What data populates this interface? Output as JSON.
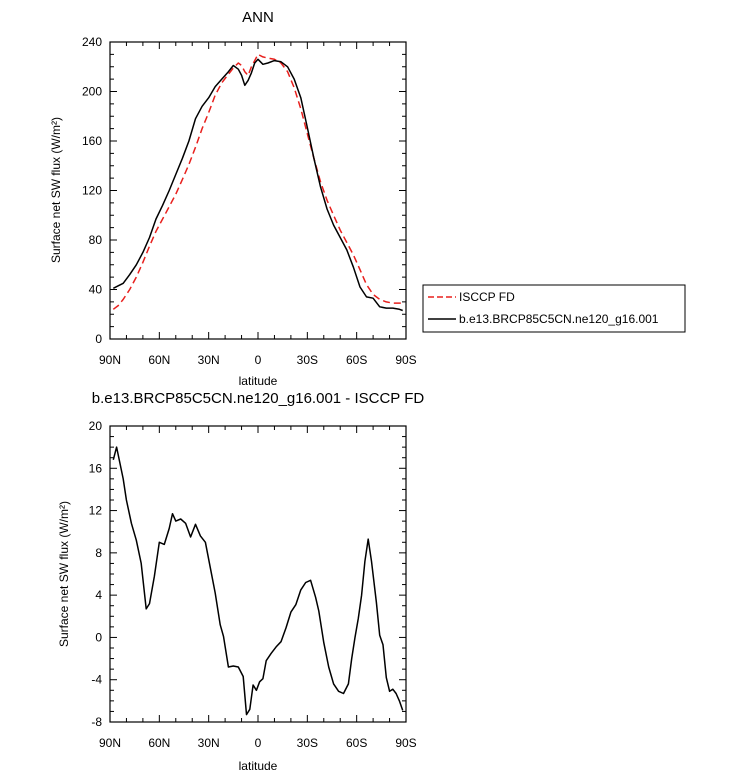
{
  "chart_data": [
    {
      "type": "line",
      "title": "ANN",
      "xlabel": "latitude",
      "ylabel": "Surface net SW flux (W/m²)",
      "xlim": [
        -90,
        90
      ],
      "ylim": [
        0,
        240
      ],
      "x_ticks": [
        -90,
        -60,
        -30,
        0,
        30,
        60,
        90
      ],
      "x_tick_labels": [
        "90N",
        "60N",
        "30N",
        "0",
        "30S",
        "60S",
        "90S"
      ],
      "y_ticks": [
        0,
        40,
        80,
        120,
        160,
        200,
        240
      ],
      "y_tick_labels": [
        "0",
        "40",
        "80",
        "120",
        "160",
        "200",
        "240"
      ],
      "legend_position": "right",
      "series": [
        {
          "name": "ISCCP FD",
          "color": "#e8201d",
          "dash": "dashed",
          "x": [
            -88,
            -85,
            -82,
            -78,
            -74,
            -70,
            -66,
            -62,
            -58,
            -54,
            -50,
            -46,
            -42,
            -38,
            -34,
            -30,
            -26,
            -22,
            -18,
            -15,
            -12,
            -10,
            -8,
            -6,
            -4,
            -2,
            0,
            3,
            6,
            10,
            14,
            18,
            22,
            26,
            30,
            34,
            38,
            42,
            46,
            50,
            54,
            58,
            62,
            66,
            70,
            74,
            78,
            82,
            86,
            88
          ],
          "y": [
            24,
            27,
            32,
            40,
            50,
            62,
            75,
            87,
            97,
            107,
            117,
            129,
            141,
            155,
            170,
            183,
            197,
            207,
            214,
            219,
            223,
            221,
            216,
            213,
            220,
            225,
            230,
            228,
            227,
            226,
            223,
            216,
            203,
            186,
            166,
            146,
            127,
            112,
            100,
            88,
            78,
            68,
            56,
            44,
            36,
            32,
            30,
            29,
            29,
            29
          ]
        },
        {
          "name": "b.e13.BRCP85C5CN.ne120_g16.001",
          "color": "#000000",
          "dash": "solid",
          "x": [
            -88,
            -85,
            -82,
            -78,
            -74,
            -70,
            -66,
            -62,
            -58,
            -54,
            -50,
            -46,
            -42,
            -38,
            -34,
            -30,
            -26,
            -22,
            -18,
            -15,
            -12,
            -10,
            -8,
            -6,
            -4,
            -2,
            0,
            3,
            6,
            10,
            14,
            18,
            22,
            26,
            30,
            34,
            38,
            42,
            46,
            50,
            54,
            58,
            62,
            66,
            70,
            74,
            78,
            82,
            86,
            88
          ],
          "y": [
            41,
            43,
            45,
            52,
            60,
            70,
            82,
            97,
            108,
            120,
            133,
            146,
            160,
            178,
            188,
            195,
            204,
            210,
            216,
            221,
            218,
            213,
            205,
            209,
            215,
            223,
            226,
            222,
            223,
            225,
            224,
            220,
            210,
            195,
            171,
            146,
            123,
            105,
            92,
            82,
            72,
            58,
            42,
            34,
            33,
            26,
            25,
            25,
            24,
            23
          ]
        }
      ]
    },
    {
      "type": "line",
      "title": "b.e13.BRCP85C5CN.ne120_g16.001 - ISCCP FD",
      "xlabel": "latitude",
      "ylabel": "Surface net SW flux (W/m²)",
      "xlim": [
        -90,
        90
      ],
      "ylim": [
        -8,
        20
      ],
      "x_ticks": [
        -90,
        -60,
        -30,
        0,
        30,
        60,
        90
      ],
      "x_tick_labels": [
        "90N",
        "60N",
        "30N",
        "0",
        "30S",
        "60S",
        "90S"
      ],
      "y_ticks": [
        -8,
        -4,
        0,
        4,
        8,
        12,
        16,
        20
      ],
      "y_tick_labels": [
        "-8",
        "-4",
        "0",
        "4",
        "8",
        "12",
        "16",
        "20"
      ],
      "series": [
        {
          "color": "#000000",
          "dash": "solid",
          "x": [
            -88,
            -86,
            -84,
            -82,
            -80,
            -77,
            -74,
            -71,
            -68,
            -66,
            -63,
            -60,
            -57,
            -54,
            -52,
            -50,
            -47,
            -44,
            -41,
            -38,
            -35,
            -32,
            -29,
            -26,
            -23,
            -21,
            -18,
            -15,
            -12,
            -9,
            -7,
            -5,
            -3,
            -1,
            1,
            3,
            5,
            8,
            11,
            14,
            17,
            20,
            23,
            26,
            29,
            32,
            35,
            37,
            40,
            43,
            46,
            49,
            52,
            55,
            57,
            59,
            61,
            63,
            65,
            67,
            69,
            72,
            74,
            76,
            78,
            80,
            82,
            84,
            86,
            88
          ],
          "y": [
            16.8,
            18,
            16.5,
            15,
            13,
            10.8,
            9.2,
            7,
            2.7,
            3.2,
            5.8,
            9,
            8.8,
            10.3,
            11.7,
            11,
            11.2,
            10.8,
            9.5,
            10.7,
            9.6,
            9,
            6.6,
            4.2,
            1.2,
            0.1,
            -2.8,
            -2.7,
            -2.8,
            -3.7,
            -7.3,
            -6.8,
            -4.5,
            -5,
            -4.2,
            -3.9,
            -2.2,
            -1.5,
            -0.9,
            -0.4,
            0.9,
            2.4,
            3.1,
            4.5,
            5.2,
            5.4,
            3.8,
            2.5,
            -0.5,
            -2.8,
            -4.4,
            -5.1,
            -5.3,
            -4.4,
            -2,
            0,
            1.8,
            4,
            7.2,
            9.3,
            7.2,
            3.3,
            0.2,
            -0.7,
            -3.8,
            -5.1,
            -4.9,
            -5.3,
            -6,
            -6.9
          ]
        }
      ]
    }
  ]
}
